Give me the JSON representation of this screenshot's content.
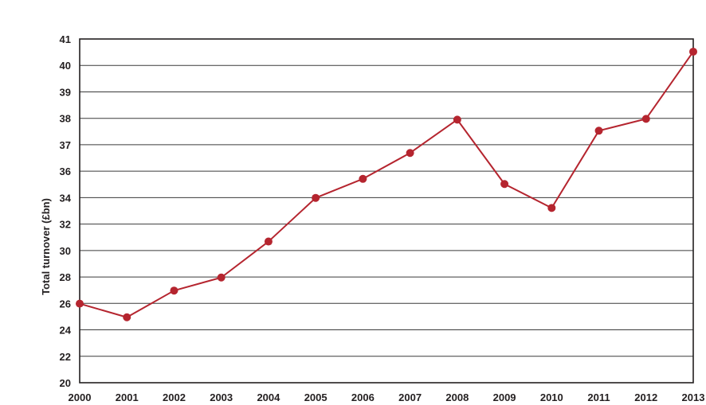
{
  "chart_data": {
    "type": "line",
    "title": "",
    "xlabel": "",
    "ylabel": "Total turnover (£bn)",
    "x": [
      "2000",
      "2001",
      "2002",
      "2003",
      "2004",
      "2005",
      "2006",
      "2007",
      "2008",
      "2009",
      "2010",
      "2011",
      "2012",
      "2013"
    ],
    "series": [
      {
        "values": [
          25.98,
          24.95,
          26.97,
          27.96,
          30.68,
          33.98,
          35.42,
          36.69,
          37.95,
          35.03,
          33.22,
          37.53,
          37.98,
          40.52
        ]
      }
    ],
    "y_ticks": [
      "20",
      "22",
      "24",
      "26",
      "28",
      "30",
      "32",
      "34",
      "36",
      "37",
      "38",
      "39",
      "40",
      "41"
    ],
    "grid": "horizontal",
    "legend": "none",
    "colors": {
      "line": "#b5252f",
      "marker": "#b5252f"
    }
  }
}
